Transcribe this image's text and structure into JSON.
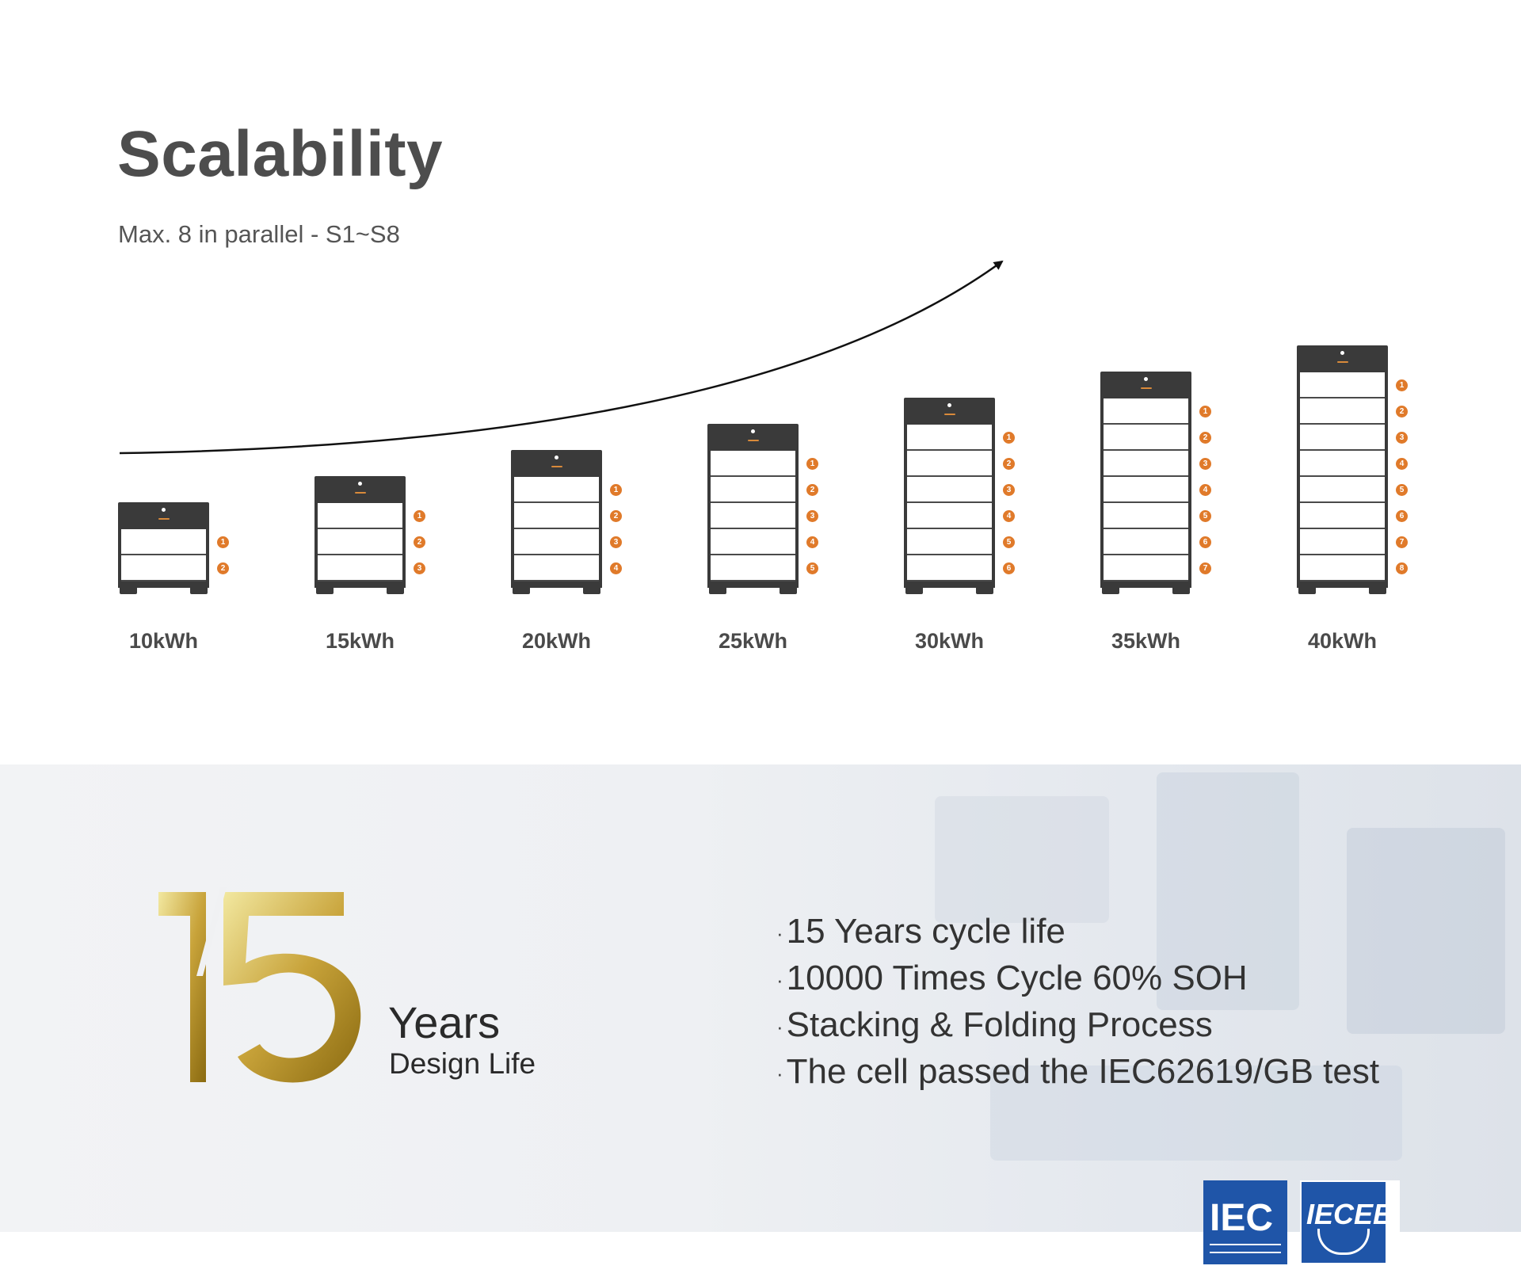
{
  "header": {
    "title": "Scalability",
    "subtitle": "Max. 8 in parallel - S1~S8"
  },
  "systems": [
    {
      "capacity": "10kWh",
      "modules": 2
    },
    {
      "capacity": "15kWh",
      "modules": 3
    },
    {
      "capacity": "20kWh",
      "modules": 4
    },
    {
      "capacity": "25kWh",
      "modules": 5
    },
    {
      "capacity": "30kWh",
      "modules": 6
    },
    {
      "capacity": "35kWh",
      "modules": 7
    },
    {
      "capacity": "40kWh",
      "modules": 8
    }
  ],
  "design_life": {
    "number": "15",
    "years": "Years",
    "label": "Design Life"
  },
  "features": [
    "15 Years cycle life",
    "10000 Times Cycle 60% SOH",
    "Stacking & Folding Process",
    "The cell passed the IEC62619/GB test"
  ],
  "certifications": {
    "iec": "IEC",
    "iecee": "IECEE"
  },
  "colors": {
    "title": "#4d4d4d",
    "cabinet": "#3a3a3a",
    "badge": "#e07a2a",
    "gold_light": "#f2e8a0",
    "gold_dark": "#8a6a10",
    "cert_blue": "#1f55a8"
  }
}
